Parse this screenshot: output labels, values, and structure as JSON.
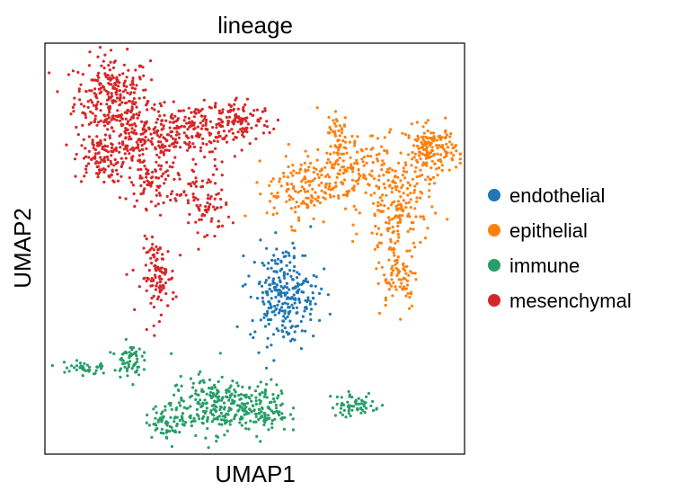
{
  "chart_data": {
    "type": "scatter",
    "title": "lineage",
    "xlabel": "UMAP1",
    "ylabel": "UMAP2",
    "grid": false,
    "xticks": false,
    "yticks": false,
    "legend_position": "right",
    "categories": [
      "endothelial",
      "epithelial",
      "immune",
      "mesenchymal"
    ],
    "colors": {
      "endothelial": "#1f77b4",
      "epithelial": "#ff7f0e",
      "immune": "#279e68",
      "mesenchymal": "#d62728"
    },
    "xlim": [
      0,
      100
    ],
    "ylim": [
      0,
      100
    ],
    "clusters": [
      {
        "lineage": "mesenchymal",
        "x": 16,
        "y": 87,
        "sx": 4.5,
        "sy": 5,
        "n": 260
      },
      {
        "lineage": "mesenchymal",
        "x": 23,
        "y": 76,
        "sx": 5,
        "sy": 4,
        "n": 180
      },
      {
        "lineage": "mesenchymal",
        "x": 35,
        "y": 79,
        "sx": 5,
        "sy": 3,
        "n": 150
      },
      {
        "lineage": "mesenchymal",
        "x": 46,
        "y": 81,
        "sx": 4,
        "sy": 3,
        "n": 120
      },
      {
        "lineage": "mesenchymal",
        "x": 13,
        "y": 72,
        "sx": 3,
        "sy": 3,
        "n": 100
      },
      {
        "lineage": "mesenchymal",
        "x": 38,
        "y": 61,
        "sx": 3,
        "sy": 5,
        "n": 90
      },
      {
        "lineage": "mesenchymal",
        "x": 26,
        "y": 66,
        "sx": 3,
        "sy": 3,
        "n": 70
      },
      {
        "lineage": "mesenchymal",
        "x": 27,
        "y": 43,
        "sx": 2,
        "sy": 4.5,
        "n": 110
      },
      {
        "lineage": "epithelial",
        "x": 92,
        "y": 74,
        "sx": 3,
        "sy": 3,
        "n": 160
      },
      {
        "lineage": "epithelial",
        "x": 84,
        "y": 60,
        "sx": 4,
        "sy": 7,
        "n": 190
      },
      {
        "lineage": "epithelial",
        "x": 71,
        "y": 69,
        "sx": 5,
        "sy": 4,
        "n": 160
      },
      {
        "lineage": "epithelial",
        "x": 61,
        "y": 64,
        "sx": 4,
        "sy": 4,
        "n": 110
      },
      {
        "lineage": "epithelial",
        "x": 84,
        "y": 43,
        "sx": 2.5,
        "sy": 4,
        "n": 70
      },
      {
        "lineage": "epithelial",
        "x": 70,
        "y": 78,
        "sx": 1.5,
        "sy": 3,
        "n": 40
      },
      {
        "lineage": "endothelial",
        "x": 57,
        "y": 39,
        "sx": 4,
        "sy": 6,
        "n": 260
      },
      {
        "lineage": "immune",
        "x": 40,
        "y": 12,
        "sx": 5,
        "sy": 3.5,
        "n": 230
      },
      {
        "lineage": "immune",
        "x": 52,
        "y": 11,
        "sx": 3,
        "sy": 3,
        "n": 110
      },
      {
        "lineage": "immune",
        "x": 30,
        "y": 8,
        "sx": 3,
        "sy": 2,
        "n": 70
      },
      {
        "lineage": "immune",
        "x": 74,
        "y": 12,
        "sx": 3,
        "sy": 1.5,
        "n": 60
      },
      {
        "lineage": "immune",
        "x": 20,
        "y": 23,
        "sx": 1.5,
        "sy": 2,
        "n": 60
      },
      {
        "lineage": "immune",
        "x": 9,
        "y": 21,
        "sx": 3,
        "sy": 1,
        "n": 40
      }
    ]
  }
}
